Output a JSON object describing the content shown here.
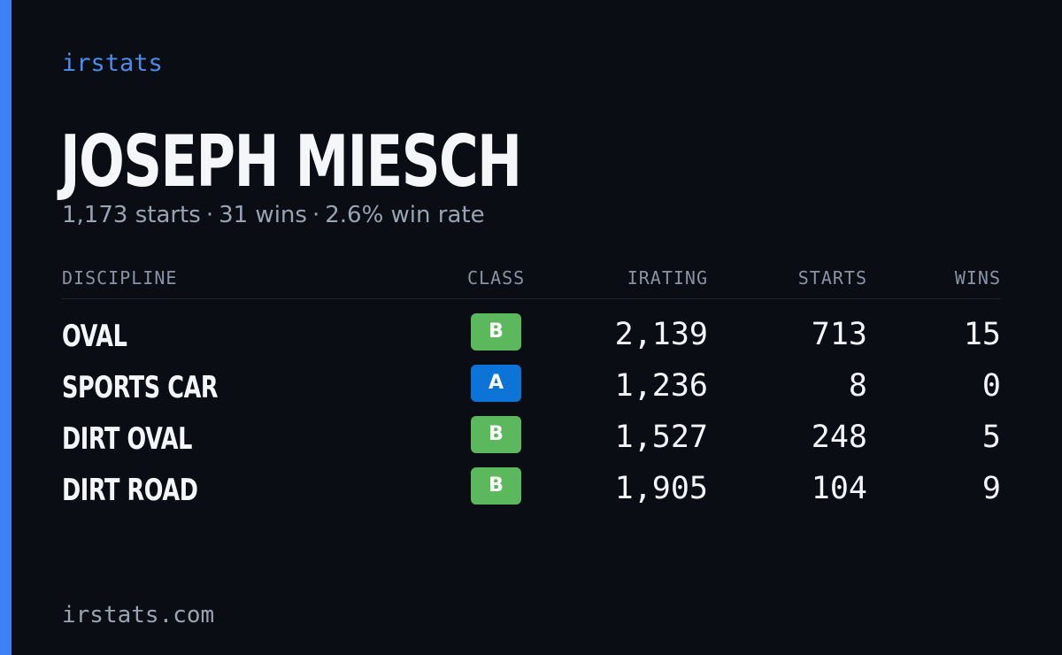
{
  "brand": "irstats",
  "driver": {
    "name": "JOSEPH MIESCH",
    "starts": "1,173 starts",
    "wins": "31 wins",
    "win_rate": "2.6% win rate",
    "separator": "·"
  },
  "table": {
    "headers": {
      "discipline": "DISCIPLINE",
      "class": "CLASS",
      "irating": "IRATING",
      "starts": "STARTS",
      "wins": "WINS"
    },
    "rows": [
      {
        "discipline": "OVAL",
        "class": "B",
        "class_color": "#5cb85c",
        "irating": "2,139",
        "starts": "713",
        "wins": "15"
      },
      {
        "discipline": "SPORTS CAR",
        "class": "A",
        "class_color": "#0b74d6",
        "irating": "1,236",
        "starts": "8",
        "wins": "0"
      },
      {
        "discipline": "DIRT OVAL",
        "class": "B",
        "class_color": "#5cb85c",
        "irating": "1,527",
        "starts": "248",
        "wins": "5"
      },
      {
        "discipline": "DIRT ROAD",
        "class": "B",
        "class_color": "#5cb85c",
        "irating": "1,905",
        "starts": "104",
        "wins": "9"
      }
    ]
  },
  "footer": "irstats.com",
  "colors": {
    "accent": "#3b82f6",
    "background": "#0a0d14",
    "text_primary": "#f4f6fa",
    "text_secondary": "#9aa3b2"
  }
}
